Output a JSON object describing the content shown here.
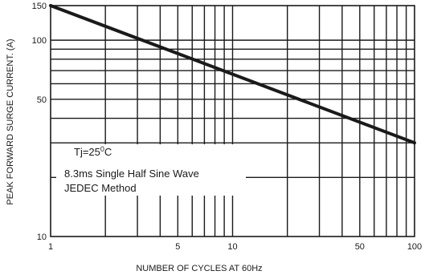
{
  "chart_data": {
    "type": "line",
    "title": "",
    "xlabel": "NUMBER OF CYCLES AT 60Hz",
    "ylabel": "PEAK FORWARD SURGE CURRENT. (A)",
    "x_scale": "log",
    "y_scale": "log",
    "xlim": [
      1,
      100
    ],
    "ylim": [
      10,
      150
    ],
    "x_ticks": [
      1,
      5,
      10,
      50,
      100
    ],
    "x_tick_labels": [
      "1",
      "5",
      "10",
      "50",
      "100"
    ],
    "y_ticks": [
      10,
      50,
      100,
      150
    ],
    "y_tick_labels": [
      "10",
      "50",
      "100",
      "150"
    ],
    "x_minor_grid": [
      2,
      3,
      4,
      5,
      6,
      7,
      8,
      9,
      10,
      20,
      30,
      40,
      50,
      60,
      70,
      80,
      90
    ],
    "y_minor_grid": [
      20,
      30,
      40,
      50,
      60,
      70,
      80,
      90,
      100
    ],
    "grid": true,
    "legend": "none",
    "series": [
      {
        "x": [
          1,
          100
        ],
        "y": [
          150,
          30
        ],
        "color": "#1a1a1a"
      }
    ],
    "annotations": {
      "tj_prefix": "Tj=25",
      "tj_degree": "0",
      "tj_unit": "C",
      "line2": "8.3ms Single Half Sine Wave",
      "line3": "JEDEC Method"
    }
  }
}
